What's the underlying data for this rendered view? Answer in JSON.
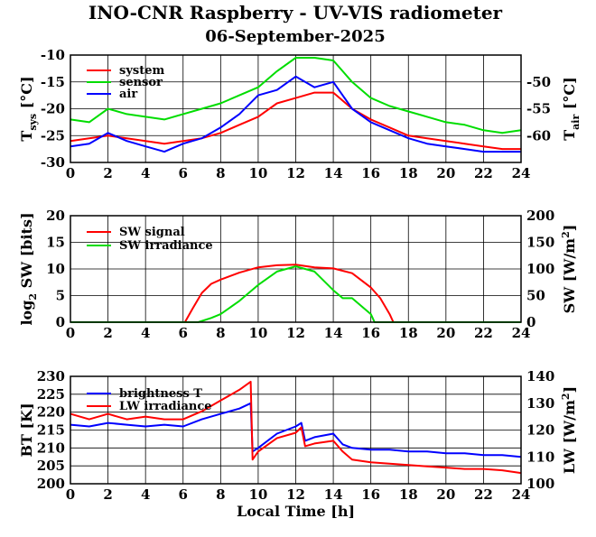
{
  "title": "INO-CNR Raspberry - UV-VIS radiometer",
  "subtitle": "06-September-2025",
  "chart_data": [
    {
      "type": "line",
      "x_ticks": [
        "0",
        "2",
        "4",
        "6",
        "8",
        "10",
        "12",
        "14",
        "16",
        "18",
        "20",
        "22",
        "24"
      ],
      "xlim": [
        0,
        24
      ],
      "ylabel_left": "T",
      "ylabel_left_sub": "sys",
      "ylabel_left_unit": "[°C]",
      "ylim_left": [
        -30,
        -10
      ],
      "yticks_left": [
        "-30",
        "-25",
        "-20",
        "-15",
        "-10"
      ],
      "ylabel_right": "T",
      "ylabel_right_sub": "air",
      "ylabel_right_unit": "[°C]",
      "ylim_right": [
        -65,
        -45
      ],
      "yticks_right": [
        "-60",
        "-55",
        "-50"
      ],
      "grid": true,
      "legend": "top-left",
      "series": [
        {
          "name": "system",
          "axis": "left",
          "color": "#ff0000",
          "x": [
            0,
            1,
            2,
            3,
            4,
            5,
            6,
            7,
            8,
            9,
            10,
            11,
            12,
            13,
            14,
            15,
            16,
            17,
            18,
            19,
            20,
            21,
            22,
            23,
            24
          ],
          "y": [
            -26,
            -25.5,
            -25,
            -25.5,
            -26,
            -26.5,
            -26,
            -25.5,
            -24.5,
            -23,
            -21.5,
            -19,
            -18,
            -17,
            -17,
            -20,
            -22,
            -23.5,
            -25,
            -25.5,
            -26,
            -26.5,
            -27,
            -27.5,
            -27.5
          ]
        },
        {
          "name": "sensor",
          "axis": "left",
          "color": "#00dd00",
          "x": [
            0,
            1,
            2,
            3,
            4,
            5,
            6,
            7,
            8,
            9,
            10,
            11,
            12,
            13,
            14,
            15,
            16,
            17,
            18,
            19,
            20,
            21,
            22,
            23,
            24
          ],
          "y": [
            -22,
            -22.5,
            -20,
            -21,
            -21.5,
            -22,
            -21,
            -20,
            -19,
            -17.5,
            -16,
            -13,
            -10.5,
            -10.5,
            -11,
            -15,
            -18,
            -19.5,
            -20.5,
            -21.5,
            -22.5,
            -23,
            -24,
            -24.5,
            -24
          ]
        },
        {
          "name": "air",
          "axis": "right",
          "color": "#0000ff",
          "x": [
            0,
            1,
            2,
            3,
            4,
            5,
            6,
            7,
            8,
            9,
            10,
            11,
            12,
            13,
            14,
            15,
            16,
            17,
            18,
            19,
            20,
            21,
            22,
            23,
            24
          ],
          "y": [
            -62,
            -61.5,
            -59.5,
            -61,
            -62,
            -63,
            -61.5,
            -60.5,
            -58.5,
            -56,
            -52.5,
            -51.5,
            -49,
            -51,
            -50,
            -55,
            -57.5,
            -59,
            -60.5,
            -61.5,
            -62,
            -62.5,
            -63,
            -63,
            -63
          ]
        }
      ]
    },
    {
      "type": "line",
      "x_ticks": [
        "0",
        "2",
        "4",
        "6",
        "8",
        "10",
        "12",
        "14",
        "16",
        "18",
        "20",
        "22",
        "24"
      ],
      "xlim": [
        0,
        24
      ],
      "ylabel_left": "log",
      "ylabel_left_sub": "2",
      "ylabel_left_unit": "SW [bits]",
      "ylim_left": [
        0,
        20
      ],
      "yticks_left": [
        "0",
        "5",
        "10",
        "15",
        "20"
      ],
      "ylabel_right": "SW [W/m",
      "ylabel_right_sup": "2",
      "ylabel_right_end": "]",
      "ylim_right": [
        0,
        200
      ],
      "yticks_right": [
        "0",
        "50",
        "100",
        "150",
        "200"
      ],
      "grid": true,
      "legend": "top-left",
      "series": [
        {
          "name": "SW signal",
          "axis": "left",
          "color": "#ff0000",
          "x": [
            0,
            6.1,
            6.5,
            7,
            7.5,
            8,
            9,
            10,
            11,
            12,
            13,
            14,
            15,
            16,
            16.5,
            17,
            17.2,
            24
          ],
          "y": [
            0,
            0,
            2.5,
            5.5,
            7.2,
            8.0,
            9.3,
            10.3,
            10.7,
            10.8,
            10.3,
            10.1,
            9.2,
            6.5,
            4.5,
            1.5,
            0,
            0
          ]
        },
        {
          "name": "SW irradiance",
          "axis": "right",
          "color": "#00dd00",
          "x": [
            0,
            6.8,
            7.5,
            8,
            9,
            10,
            11,
            12,
            13,
            14,
            14.5,
            15,
            16,
            16.2,
            24
          ],
          "y": [
            0,
            0,
            8,
            15,
            40,
            70,
            95,
            105,
            95,
            60,
            45,
            45,
            15,
            0,
            0
          ]
        }
      ]
    },
    {
      "type": "line",
      "x_ticks": [
        "0",
        "2",
        "4",
        "6",
        "8",
        "10",
        "12",
        "14",
        "16",
        "18",
        "20",
        "22",
        "24"
      ],
      "xlim": [
        0,
        24
      ],
      "xlabel": "Local Time [h]",
      "ylabel_left": "BT [K]",
      "ylim_left": [
        200,
        230
      ],
      "yticks_left": [
        "200",
        "205",
        "210",
        "215",
        "220",
        "225",
        "230"
      ],
      "ylabel_right": "LW [W/m",
      "ylabel_right_sup": "2",
      "ylabel_right_end": "]",
      "ylim_right": [
        100,
        140
      ],
      "yticks_right": [
        "100",
        "110",
        "120",
        "130",
        "140"
      ],
      "grid": true,
      "legend": "top-left",
      "series": [
        {
          "name": "brightness T",
          "axis": "left",
          "color": "#0000ff",
          "x": [
            0,
            1,
            2,
            3,
            4,
            5,
            6,
            7,
            8,
            9,
            9.6,
            9.7,
            10,
            11,
            12,
            12.3,
            12.5,
            13,
            14,
            14.5,
            15,
            16,
            17,
            18,
            19,
            20,
            21,
            22,
            23,
            24
          ],
          "y": [
            216.5,
            216,
            217,
            216.5,
            216,
            216.5,
            216,
            218,
            219.5,
            221,
            222.5,
            209,
            210,
            214,
            216,
            217,
            212,
            213,
            214,
            211,
            210,
            209.5,
            209.5,
            209,
            209,
            208.5,
            208.5,
            208,
            208,
            207.5
          ]
        },
        {
          "name": "LW irradiance",
          "axis": "right",
          "color": "#ff0000",
          "x": [
            0,
            1,
            2,
            3,
            4,
            5,
            6,
            7,
            8,
            9,
            9.6,
            9.7,
            10,
            11,
            12,
            12.3,
            12.5,
            13,
            14,
            14.5,
            15,
            16,
            17,
            18,
            19,
            20,
            21,
            22,
            23,
            24
          ],
          "y": [
            126,
            124,
            126,
            124,
            125,
            124,
            124,
            127,
            131,
            135,
            138,
            109,
            112,
            117,
            119,
            121,
            114,
            115,
            116,
            112,
            109,
            108,
            107.5,
            107,
            106.5,
            106,
            105.5,
            105.5,
            105,
            104
          ]
        }
      ]
    }
  ]
}
